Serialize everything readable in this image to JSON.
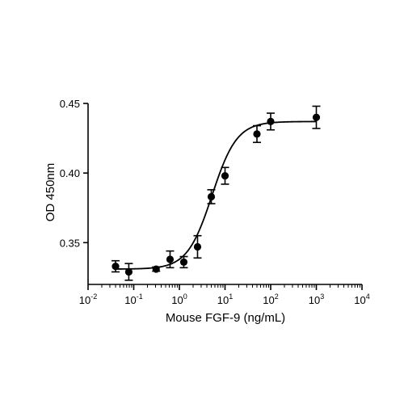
{
  "chart_data": {
    "type": "scatter",
    "title": "",
    "xlabel": "Mouse FGF-9 (ng/mL)",
    "ylabel": "OD 450nm",
    "xscale": "log",
    "xlim": [
      0.01,
      10000
    ],
    "ylim": [
      0.32,
      0.45
    ],
    "x_ticks": [
      {
        "value": 0.01,
        "base": "10",
        "exp": "-2"
      },
      {
        "value": 0.1,
        "base": "10",
        "exp": "-1"
      },
      {
        "value": 1,
        "base": "10",
        "exp": "0"
      },
      {
        "value": 10,
        "base": "10",
        "exp": "1"
      },
      {
        "value": 100,
        "base": "10",
        "exp": "2"
      },
      {
        "value": 1000,
        "base": "10",
        "exp": "3"
      },
      {
        "value": 10000,
        "base": "10",
        "exp": "4"
      }
    ],
    "y_ticks": [
      {
        "value": 0.35,
        "label": "0.35"
      },
      {
        "value": 0.4,
        "label": "0.40"
      },
      {
        "value": 0.45,
        "label": "0.45"
      }
    ],
    "grid": false,
    "marker_color": "#000000",
    "points": [
      {
        "x": 0.04,
        "y": 0.333,
        "err": 0.004
      },
      {
        "x": 0.078,
        "y": 0.329,
        "err": 0.006
      },
      {
        "x": 0.31,
        "y": 0.331,
        "err": 0.0015
      },
      {
        "x": 0.625,
        "y": 0.338,
        "err": 0.006
      },
      {
        "x": 1.25,
        "y": 0.336,
        "err": 0.004
      },
      {
        "x": 2.5,
        "y": 0.347,
        "err": 0.008
      },
      {
        "x": 5,
        "y": 0.383,
        "err": 0.005
      },
      {
        "x": 10,
        "y": 0.398,
        "err": 0.006
      },
      {
        "x": 50,
        "y": 0.428,
        "err": 0.006
      },
      {
        "x": 100,
        "y": 0.437,
        "err": 0.006
      },
      {
        "x": 1000,
        "y": 0.44,
        "err": 0.008
      }
    ],
    "fit_curve": {
      "model": "4PL",
      "bottom": 0.331,
      "top": 0.437,
      "ec50": 5.2,
      "hill": 1.6,
      "x_range": [
        0.04,
        1000
      ]
    }
  }
}
